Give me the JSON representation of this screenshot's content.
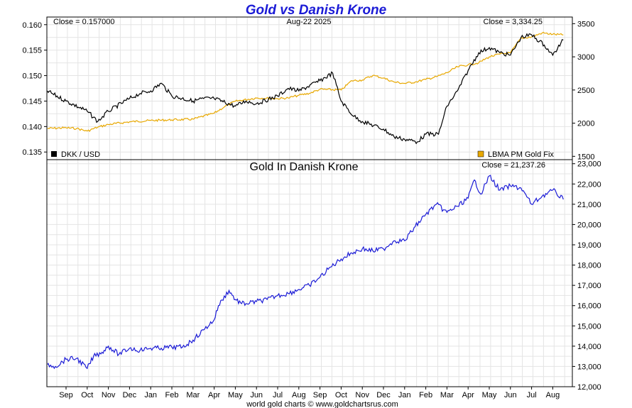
{
  "title": "Gold vs Danish Krone",
  "date_label": "Aug-22  2025",
  "footer": "world gold charts © www.goldchartsrus.com",
  "x_labels": [
    "Sep",
    "Oct",
    "Nov",
    "Dec",
    "Jan",
    "Feb",
    "Mar",
    "Apr",
    "May",
    "Jun",
    "Jul",
    "Aug",
    "Sep",
    "Oct",
    "Nov",
    "Dec",
    "Jan",
    "Feb",
    "Mar",
    "Apr",
    "May",
    "Jun",
    "Jul",
    "Aug"
  ],
  "colors": {
    "dkk": "#000000",
    "gold": "#e8a800",
    "gold_dkk": "#1b1bd6",
    "title": "#1b1bd6",
    "grid": "#e4e4e4"
  },
  "chart_data": [
    {
      "type": "line",
      "x_label_index": [
        0,
        23
      ],
      "left_axis": {
        "ticks": [
          "0.160",
          "0.155",
          "0.150",
          "0.145",
          "0.140",
          "0.135"
        ],
        "ylim": [
          0.1335,
          0.1615
        ]
      },
      "right_axis": {
        "ticks": [
          "3500",
          "3000",
          "2500",
          "2000",
          "1500"
        ],
        "ylim": [
          1450,
          3600
        ]
      },
      "close_left": "Close = 0.157000",
      "close_right": "Close = 3,334.25",
      "series": [
        {
          "name": "DKK / USD",
          "axis": "left",
          "x": [
            -0.9,
            0,
            1,
            1.5,
            2,
            3,
            3.5,
            4,
            4.5,
            5,
            6,
            6.5,
            7,
            8,
            8.5,
            9,
            10,
            10.5,
            11,
            12,
            12.6,
            13,
            13.6,
            14,
            15,
            15.5,
            16,
            16.6,
            17,
            17.6,
            18,
            18.5,
            19,
            19.5,
            20,
            20.5,
            21,
            21.5,
            22,
            22.6,
            23,
            23.5
          ],
          "y": [
            0.147,
            0.145,
            0.143,
            0.141,
            0.143,
            0.1455,
            0.1465,
            0.147,
            0.1485,
            0.146,
            0.145,
            0.1455,
            0.1455,
            0.144,
            0.145,
            0.1445,
            0.146,
            0.1475,
            0.147,
            0.149,
            0.1505,
            0.145,
            0.142,
            0.141,
            0.1395,
            0.138,
            0.1375,
            0.137,
            0.1385,
            0.1385,
            0.144,
            0.147,
            0.151,
            0.1545,
            0.1555,
            0.1545,
            0.154,
            0.1575,
            0.158,
            0.156,
            0.154,
            0.157
          ]
        },
        {
          "name": "LBMA PM Gold Fix",
          "axis": "right",
          "x": [
            -0.9,
            0,
            0.5,
            1,
            1.5,
            2,
            3,
            4,
            5,
            6,
            7,
            7.5,
            8,
            9,
            10,
            10.5,
            11,
            11.5,
            12,
            13,
            13.5,
            14,
            14.5,
            15,
            15.5,
            16,
            16.5,
            17,
            17.5,
            18,
            18.5,
            19,
            19.5,
            20,
            20.5,
            21,
            21.5,
            22,
            22.5,
            23,
            23.5
          ],
          "y": [
            1920,
            1930,
            1920,
            1880,
            1940,
            1980,
            2020,
            2040,
            2050,
            2060,
            2150,
            2250,
            2330,
            2380,
            2370,
            2380,
            2420,
            2450,
            2510,
            2500,
            2640,
            2650,
            2720,
            2680,
            2620,
            2600,
            2620,
            2660,
            2700,
            2760,
            2850,
            2880,
            2910,
            3000,
            3040,
            3060,
            3280,
            3300,
            3360,
            3340,
            3330
          ]
        }
      ]
    },
    {
      "type": "line",
      "title": "Gold In Danish Krone",
      "close": "Close = 21,237.26",
      "x_label_index": [
        0,
        23
      ],
      "y_axis": {
        "ticks": [
          "23,000",
          "22,000",
          "21,000",
          "20,000",
          "19,000",
          "18,000",
          "17,000",
          "16,000",
          "15,000",
          "14,000",
          "13,000",
          "12,000"
        ],
        "ylim": [
          12000,
          23200
        ]
      },
      "series": [
        {
          "name": "",
          "x": [
            -0.9,
            -0.5,
            0,
            0.5,
            1,
            1.3,
            1.7,
            2,
            2.5,
            3,
            3.5,
            4,
            4.5,
            5,
            5.5,
            6,
            6.5,
            7,
            7.2,
            7.7,
            8,
            8.3,
            8.5,
            9,
            9.5,
            10,
            10.5,
            11,
            11.5,
            12,
            12.5,
            13,
            13.5,
            14,
            14.5,
            15,
            15.5,
            16,
            16.5,
            17,
            17.5,
            18,
            18.5,
            19,
            19.3,
            19.6,
            20,
            20.5,
            21,
            21.5,
            22,
            22.5,
            23,
            23.5
          ],
          "y": [
            13100,
            13000,
            13350,
            13400,
            12900,
            13500,
            13700,
            14000,
            13600,
            13900,
            13800,
            13900,
            13900,
            13950,
            13950,
            14300,
            14800,
            15300,
            16000,
            16750,
            16300,
            16100,
            16100,
            16200,
            16300,
            16500,
            16600,
            16800,
            17000,
            17400,
            17900,
            18300,
            18600,
            18800,
            18700,
            18800,
            19200,
            19200,
            19900,
            20500,
            21000,
            20600,
            20900,
            21300,
            22200,
            21500,
            22400,
            21700,
            21900,
            21800,
            21000,
            21400,
            21700,
            21240
          ]
        }
      ]
    }
  ],
  "legend": {
    "dkk": "DKK / USD",
    "gold": "LBMA PM Gold Fix"
  }
}
